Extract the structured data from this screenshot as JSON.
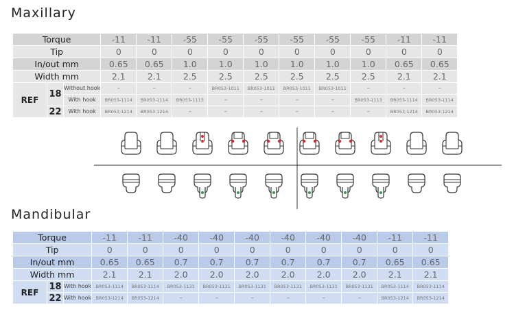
{
  "maxillary": {
    "title": "Maxillary",
    "labels": {
      "torque": "Torque",
      "tip": "Tip",
      "inout": "In/out mm",
      "width": "Width mm",
      "ref": "REF",
      "size18": "18",
      "size22": "22",
      "without_hook": "Without hook",
      "with_hook": "With hook"
    },
    "torque": [
      "-11",
      "-11",
      "-55",
      "-55",
      "-55",
      "-55",
      "-55",
      "-55",
      "-11",
      "-11"
    ],
    "tip": [
      "0",
      "0",
      "0",
      "0",
      "0",
      "0",
      "0",
      "0",
      "0",
      "0"
    ],
    "inout": [
      "0.65",
      "0.65",
      "1.0",
      "1.0",
      "1.0",
      "1.0",
      "1.0",
      "1.0",
      "0.65",
      "0.65"
    ],
    "width": [
      "2.1",
      "2.1",
      "2.5",
      "2.5",
      "2.5",
      "2.5",
      "2.5",
      "2.5",
      "2.1",
      "2.1"
    ],
    "ref18_without": [
      "–",
      "–",
      "–",
      "BR053-1011",
      "BR053-1011",
      "BR053-1011",
      "BR053-1011",
      "–",
      "–",
      "–"
    ],
    "ref18_with": [
      "BR053-1114",
      "BR053-1114",
      "BR053-1113",
      "–",
      "–",
      "–",
      "–",
      "BR053-1113",
      "BR053-1114",
      "BR053-1114"
    ],
    "ref22_with": [
      "BR053-1214",
      "BR053-1214",
      "–",
      "–",
      "–",
      "–",
      "–",
      "–",
      "BR053-1214",
      "BR053-1214"
    ]
  },
  "mandibular": {
    "title": "Mandibular",
    "labels": {
      "torque": "Torque",
      "tip": "Tip",
      "inout": "In/out mm",
      "width": "Width mm",
      "ref": "REF",
      "size18": "18",
      "size22": "22",
      "with_hook": "With hook"
    },
    "torque": [
      "-11",
      "-11",
      "-40",
      "-40",
      "-40",
      "-40",
      "-40",
      "-40",
      "-11",
      "-11"
    ],
    "tip": [
      "0",
      "0",
      "0",
      "0",
      "0",
      "0",
      "0",
      "0",
      "0",
      "0"
    ],
    "inout": [
      "0.65",
      "0.65",
      "0.7",
      "0.7",
      "0.7",
      "0.7",
      "0.7",
      "0.7",
      "0.65",
      "0.65"
    ],
    "width": [
      "2.1",
      "2.1",
      "2.0",
      "2.0",
      "2.0",
      "2.0",
      "2.0",
      "2.0",
      "2.1",
      "2.1"
    ],
    "ref18_with": [
      "BR053-1114",
      "BR053-1114",
      "BR053-1131",
      "BR053-1131",
      "BR053-1131",
      "BR053-1131",
      "BR053-1131",
      "BR053-1131",
      "BR053-1114",
      "BR053-1114"
    ],
    "ref22_with": [
      "BR053-1214",
      "BR053-1214",
      "–",
      "–",
      "–",
      "–",
      "–",
      "–",
      "BR053-1214",
      "BR053-1214"
    ]
  },
  "brackets": {
    "upper": [
      "plain",
      "plain",
      "vertical-dots",
      "corner-dots",
      "corner-dots",
      "corner-dots",
      "corner-dots",
      "vertical-dots",
      "plain",
      "plain"
    ],
    "lower": [
      "plain",
      "plain",
      "lower-dots",
      "lower-dots",
      "lower-dots",
      "lower-dots",
      "lower-dots",
      "lower-dots",
      "plain",
      "plain"
    ]
  },
  "colors": {
    "red_dot": "#d8282f",
    "green_dot": "#2e9a4a",
    "max_row": "#e6e6e6",
    "man_row": "#cfdcf1"
  }
}
